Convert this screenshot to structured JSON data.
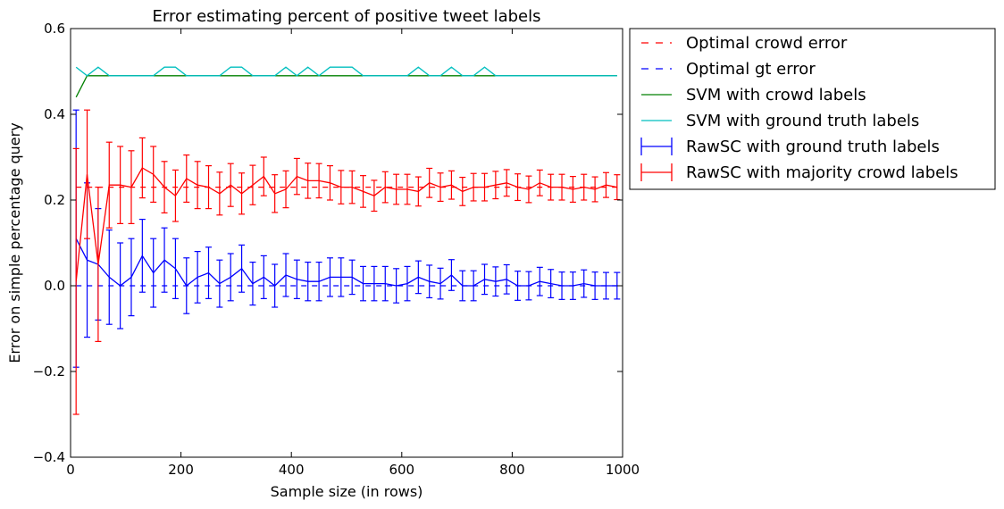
{
  "chart_data": {
    "type": "line",
    "title": "Error estimating percent of positive tweet labels",
    "xlabel": "Sample size (in rows)",
    "ylabel": "Error on simple percentage query",
    "xlim": [
      0,
      1000
    ],
    "ylim": [
      -0.4,
      0.6
    ],
    "xticks": [
      0,
      200,
      400,
      600,
      800,
      1000
    ],
    "yticks": [
      -0.4,
      -0.2,
      0.0,
      0.2,
      0.4,
      0.6
    ],
    "xtick_labels": [
      "0",
      "200",
      "400",
      "600",
      "800",
      "1000"
    ],
    "ytick_labels": [
      "−0.4",
      "−0.2",
      "0.0",
      "0.2",
      "0.4",
      "0.6"
    ],
    "grid": false,
    "legend_position": "outside-right-top",
    "x": [
      10,
      30,
      50,
      70,
      90,
      110,
      130,
      150,
      170,
      190,
      210,
      230,
      250,
      270,
      290,
      310,
      330,
      350,
      370,
      390,
      410,
      430,
      450,
      470,
      490,
      510,
      530,
      550,
      570,
      590,
      610,
      630,
      650,
      670,
      690,
      710,
      730,
      750,
      770,
      790,
      810,
      830,
      850,
      870,
      890,
      910,
      930,
      950,
      970,
      990
    ],
    "series": [
      {
        "name": "Optimal crowd error",
        "style": "dashed",
        "color": "#ff0000",
        "values": [
          0.23,
          0.23,
          0.23,
          0.23,
          0.23,
          0.23,
          0.23,
          0.23,
          0.23,
          0.23,
          0.23,
          0.23,
          0.23,
          0.23,
          0.23,
          0.23,
          0.23,
          0.23,
          0.23,
          0.23,
          0.23,
          0.23,
          0.23,
          0.23,
          0.23,
          0.23,
          0.23,
          0.23,
          0.23,
          0.23,
          0.23,
          0.23,
          0.23,
          0.23,
          0.23,
          0.23,
          0.23,
          0.23,
          0.23,
          0.23,
          0.23,
          0.23,
          0.23,
          0.23,
          0.23,
          0.23,
          0.23,
          0.23,
          0.23,
          0.23
        ]
      },
      {
        "name": "Optimal gt error",
        "style": "dashed",
        "color": "#0000ff",
        "values": [
          0.0,
          0.0,
          0.0,
          0.0,
          0.0,
          0.0,
          0.0,
          0.0,
          0.0,
          0.0,
          0.0,
          0.0,
          0.0,
          0.0,
          0.0,
          0.0,
          0.0,
          0.0,
          0.0,
          0.0,
          0.0,
          0.0,
          0.0,
          0.0,
          0.0,
          0.0,
          0.0,
          0.0,
          0.0,
          0.0,
          0.0,
          0.0,
          0.0,
          0.0,
          0.0,
          0.0,
          0.0,
          0.0,
          0.0,
          0.0,
          0.0,
          0.0,
          0.0,
          0.0,
          0.0,
          0.0,
          0.0,
          0.0,
          0.0,
          0.0
        ]
      },
      {
        "name": "SVM with crowd labels",
        "style": "solid",
        "color": "#008000",
        "values": [
          0.44,
          0.49,
          0.49,
          0.49,
          0.49,
          0.49,
          0.49,
          0.49,
          0.49,
          0.49,
          0.49,
          0.49,
          0.49,
          0.49,
          0.49,
          0.49,
          0.49,
          0.49,
          0.49,
          0.49,
          0.49,
          0.49,
          0.49,
          0.49,
          0.49,
          0.49,
          0.49,
          0.49,
          0.49,
          0.49,
          0.49,
          0.49,
          0.49,
          0.49,
          0.49,
          0.49,
          0.49,
          0.49,
          0.49,
          0.49,
          0.49,
          0.49,
          0.49,
          0.49,
          0.49,
          0.49,
          0.49,
          0.49,
          0.49,
          0.49
        ]
      },
      {
        "name": "SVM with ground truth labels",
        "style": "solid",
        "color": "#00bfbf",
        "values": [
          0.51,
          0.49,
          0.51,
          0.49,
          0.49,
          0.49,
          0.49,
          0.49,
          0.51,
          0.51,
          0.49,
          0.49,
          0.49,
          0.49,
          0.51,
          0.51,
          0.49,
          0.49,
          0.49,
          0.51,
          0.49,
          0.51,
          0.49,
          0.51,
          0.51,
          0.51,
          0.49,
          0.49,
          0.49,
          0.49,
          0.49,
          0.51,
          0.49,
          0.49,
          0.51,
          0.49,
          0.49,
          0.51,
          0.49,
          0.49,
          0.49,
          0.49,
          0.49,
          0.49,
          0.49,
          0.49,
          0.49,
          0.49,
          0.49,
          0.49
        ]
      },
      {
        "name": "RawSC with ground truth labels",
        "style": "errorbar",
        "color": "#0000ff",
        "values": [
          0.11,
          0.06,
          0.05,
          0.02,
          0.0,
          0.02,
          0.07,
          0.03,
          0.06,
          0.04,
          0.0,
          0.02,
          0.03,
          0.005,
          0.02,
          0.04,
          0.005,
          0.02,
          0.0,
          0.025,
          0.015,
          0.01,
          0.01,
          0.02,
          0.02,
          0.02,
          0.005,
          0.005,
          0.005,
          0.0,
          0.005,
          0.02,
          0.01,
          0.005,
          0.025,
          0.0,
          0.0,
          0.015,
          0.01,
          0.015,
          0.0,
          0.0,
          0.01,
          0.005,
          0.0,
          0.0,
          0.005,
          0.0,
          0.0,
          0.0
        ],
        "errors": [
          0.3,
          0.18,
          0.13,
          0.11,
          0.1,
          0.09,
          0.085,
          0.08,
          0.075,
          0.07,
          0.065,
          0.06,
          0.06,
          0.055,
          0.055,
          0.055,
          0.05,
          0.05,
          0.05,
          0.05,
          0.045,
          0.045,
          0.045,
          0.045,
          0.045,
          0.04,
          0.04,
          0.04,
          0.04,
          0.04,
          0.04,
          0.038,
          0.038,
          0.036,
          0.036,
          0.035,
          0.035,
          0.035,
          0.034,
          0.034,
          0.034,
          0.033,
          0.033,
          0.033,
          0.032,
          0.032,
          0.032,
          0.032,
          0.031,
          0.031
        ]
      },
      {
        "name": "RawSC with majority crowd labels",
        "style": "errorbar",
        "color": "#ff0000",
        "values": [
          0.01,
          0.26,
          0.05,
          0.235,
          0.235,
          0.23,
          0.275,
          0.26,
          0.23,
          0.21,
          0.25,
          0.235,
          0.23,
          0.215,
          0.235,
          0.215,
          0.235,
          0.255,
          0.215,
          0.225,
          0.255,
          0.245,
          0.245,
          0.24,
          0.23,
          0.23,
          0.22,
          0.21,
          0.23,
          0.225,
          0.225,
          0.22,
          0.24,
          0.23,
          0.235,
          0.22,
          0.23,
          0.23,
          0.235,
          0.24,
          0.23,
          0.225,
          0.24,
          0.23,
          0.23,
          0.225,
          0.23,
          0.225,
          0.235,
          0.23
        ],
        "errors": [
          0.31,
          0.15,
          0.18,
          0.1,
          0.09,
          0.085,
          0.07,
          0.065,
          0.06,
          0.06,
          0.055,
          0.055,
          0.05,
          0.05,
          0.05,
          0.048,
          0.046,
          0.045,
          0.044,
          0.043,
          0.042,
          0.041,
          0.04,
          0.04,
          0.039,
          0.038,
          0.037,
          0.036,
          0.036,
          0.035,
          0.035,
          0.034,
          0.034,
          0.033,
          0.033,
          0.033,
          0.032,
          0.032,
          0.032,
          0.031,
          0.031,
          0.031,
          0.03,
          0.03,
          0.03,
          0.03,
          0.03,
          0.029,
          0.029,
          0.029
        ]
      }
    ]
  }
}
